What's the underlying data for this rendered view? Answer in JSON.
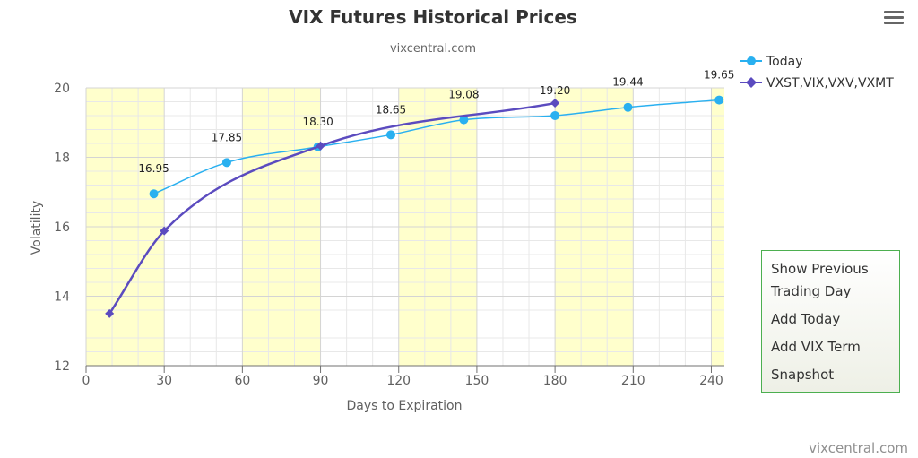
{
  "chart_data": {
    "type": "line",
    "title": "VIX Futures Historical Prices",
    "subtitle": "vixcentral.com",
    "xlabel": "Days to Expiration",
    "ylabel": "Volatility",
    "xlim": [
      0,
      245
    ],
    "ylim": [
      12,
      20
    ],
    "xticks": [
      0,
      30,
      60,
      90,
      120,
      150,
      180,
      210,
      240
    ],
    "yticks": [
      12,
      14,
      16,
      18,
      20
    ],
    "grid": true,
    "legend_position": "top-right",
    "series": [
      {
        "name": "Today",
        "color": "#29b0f0",
        "marker": "circle",
        "x": [
          26,
          54,
          89,
          117,
          145,
          180,
          208,
          243
        ],
        "y": [
          16.95,
          17.85,
          18.3,
          18.65,
          19.08,
          19.2,
          19.44,
          19.65
        ],
        "labels": [
          "16.95",
          "17.85",
          "18.30",
          "18.65",
          "19.08",
          "19.20",
          "19.44",
          "19.65"
        ]
      },
      {
        "name": "VXST,VIX,VXV,VXMT",
        "color": "#5b4bbf",
        "marker": "diamond",
        "x": [
          9,
          30,
          90,
          180
        ],
        "y": [
          13.5,
          15.88,
          18.33,
          19.56
        ]
      }
    ]
  },
  "menu": {
    "icon": "hamburger-menu-icon",
    "items": [
      "Show Previous Trading Day",
      "Add Today",
      "Add VIX Term",
      "Snapshot"
    ]
  },
  "credit": "vixcentral.com"
}
